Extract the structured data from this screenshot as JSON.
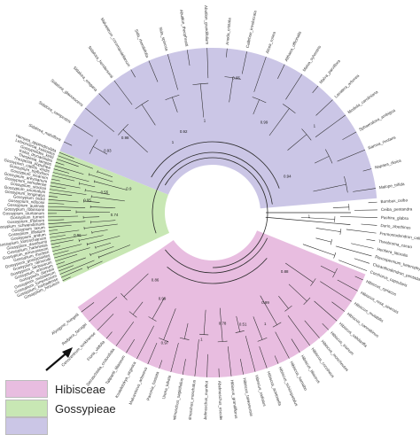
{
  "colors": {
    "hibisceae": "#e8bde0",
    "gossypieae": "#c8e7b4",
    "purple_clade": "#cbc6e6",
    "branch": "#2a2a2a",
    "tip_text": "#333333"
  },
  "legend": [
    {
      "label": "Hibisceae",
      "color": "#e8bde0"
    },
    {
      "label": "Gossypieae",
      "color": "#c8e7b4"
    }
  ],
  "clades": [
    {
      "name": "Hibisceae",
      "color": "#e8bde0"
    },
    {
      "name": "Gossypieae",
      "color": "#c8e7b4"
    },
    {
      "name": "",
      "color": "#cbc6e6"
    }
  ],
  "tip_labels": {
    "purple_clade": [
      "Sidalcea_malviflora",
      "Sidalcea_campestris",
      "Sidalcea_glaucescens",
      "Sidalcea_oregana",
      "Sidalcea_hendersonii",
      "Malvastrum_coromandelianum",
      "Sida_rhombifolia",
      "Sida_spinosa",
      "Abutilon_theophrasti",
      "Abutilon_grandifolium",
      "Anoda_cristata",
      "Callirhoe_involucrata",
      "Alcea_rosea",
      "Althaea_officinalis",
      "Malva_sylvestris",
      "Malva_parviflora",
      "Lavatera_arborea",
      "Modiola_caroliniana",
      "Sphaeralcea_ambigua",
      "Iliamna_rivularis",
      "Napaea_dioica",
      "Malope_trifida"
    ],
    "gossypieae": [
      "Gossypium_hirsutum",
      "Gossypium_barbadense",
      "Gossypium_tomentosum",
      "Gossypium_mustelinum",
      "Gossypium_darwinii",
      "Gossypium_arboreum",
      "Gossypium_herbaceum",
      "Gossypium_raimondii",
      "Gossypium_gossypioides",
      "Gossypium_thurberi",
      "Gossypium_armourianum",
      "Gossypium_harknessii",
      "Gossypium_davidsonii",
      "Gossypium_klotzschianum",
      "Gossypium_aridum",
      "Gossypium_lobatum",
      "Gossypium_laxum",
      "Gossypium_schwendimanii",
      "Gossypium_trilobum",
      "Gossypium_turneri",
      "Gossypium_sturtianum",
      "Gossypium_robinsonii",
      "Gossypium_australe",
      "Gossypium_nelsonii",
      "Gossypium_bickii",
      "Gossypium_longicalyx",
      "Gossypium_anomalum",
      "Gossypium_stocksii",
      "Gossypium_somalense",
      "Gossypium_areysianum",
      "Gossypium_incanum",
      "Gossypium_triphyllum",
      "Gossypium_capitis_viridis",
      "Thespesia_populnea",
      "Thespesia_lampas",
      "Kokia_drynarioides",
      "Gossypioides_kirkii",
      "Lebronnecia_kokioides",
      "Hampea_appendiculata"
    ],
    "hibisceae": [
      "Hibiscus_syriacus",
      "Hibiscus_rosa_sinensis",
      "Hibiscus_mutabilis",
      "Hibiscus_cannabinus",
      "Hibiscus_sabdariffa",
      "Hibiscus_trionum",
      "Hibiscus_moscheutos",
      "Hibiscus_coccineus",
      "Hibiscus_tiliaceus",
      "Hibiscus_hamabo",
      "Hibiscus_schizopetalus",
      "Hibiscus_acetosella",
      "Hibiscus_radiatus",
      "Hibiscus_taiwanensis",
      "Hibiscus_grandiflorus",
      "Abelmoschus_esculentus",
      "Abelmoschus_manihot",
      "Abelmoschus_moschatus",
      "Abelmoschus_sagittifolius",
      "Urena_lobata",
      "Pavonia_hastata",
      "Malvaviscus_arboreus",
      "Kosteletzkya_virginica",
      "Talipariti_tiliaceum",
      "Decaschistia_crotonifolia",
      "Fioria_vitifolia",
      "Cenocentrum_tonkinense",
      "Radyera_farragei",
      "Alyogyne_huegelii"
    ],
    "outgroup": [
      "Bombax_ceiba",
      "Ceiba_pentandra",
      "Pachira_glabra",
      "Durio_zibethinus",
      "Fremontodendron_californicum",
      "Theobroma_cacao",
      "Heritiera_littoralis",
      "Pterospermum_heterophyllum",
      "Chiranthodendron_pentadactylon",
      "Corchorus_capsularis"
    ]
  },
  "support_values": [
    "1",
    "1",
    "0.99",
    "0.98",
    "0.95",
    "0.96",
    "0.9",
    "0.74",
    "0.55",
    "0.93",
    "1",
    "0.94",
    "0.88",
    "0.99",
    "0.51",
    "1",
    "0.97",
    "0.86",
    "0.99",
    "0.78",
    "1",
    "0.65",
    "0.92",
    "1"
  ]
}
